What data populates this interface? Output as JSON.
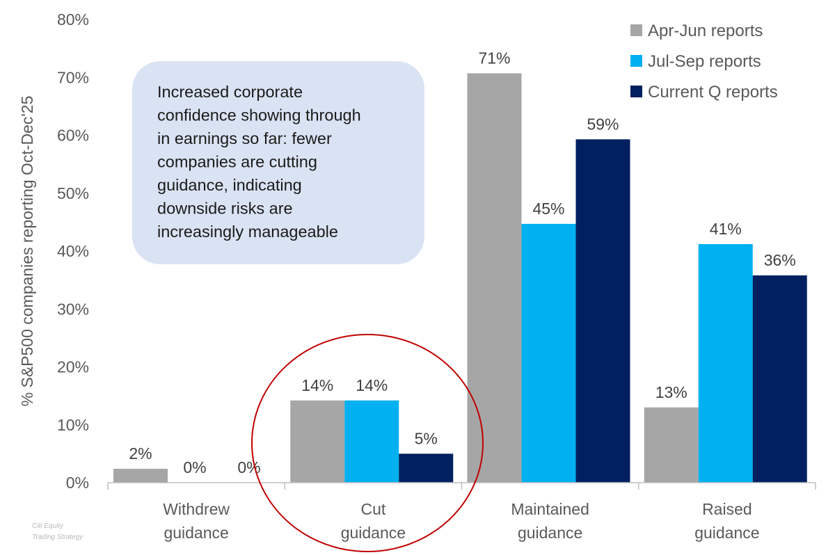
{
  "chart_data": {
    "type": "bar",
    "title": "",
    "xlabel": "",
    "ylabel": "% S&P500 companies reporting Oct-Dec'25",
    "ylim": [
      0,
      80
    ],
    "yticks": [
      0,
      10,
      20,
      30,
      40,
      50,
      60,
      70,
      80
    ],
    "ytick_labels": [
      "0%",
      "10%",
      "20%",
      "30%",
      "40%",
      "50%",
      "60%",
      "70%",
      "80%"
    ],
    "categories": [
      [
        "Withdrew",
        "guidance"
      ],
      [
        "Cut",
        "guidance"
      ],
      [
        "Maintained",
        "guidance"
      ],
      [
        "Raised",
        "guidance"
      ]
    ],
    "series": [
      {
        "name": "Apr-Jun reports",
        "color": "#a6a6a6",
        "values": [
          2.4,
          14.2,
          70.7,
          13.0
        ],
        "labels": [
          "2%",
          "14%",
          "71%",
          "13%"
        ]
      },
      {
        "name": "Jul-Sep reports",
        "color": "#00b0f0",
        "values": [
          0,
          14.2,
          44.7,
          41.2
        ],
        "labels": [
          "0%",
          "14%",
          "45%",
          "41%"
        ]
      },
      {
        "name": "Current Q reports",
        "color": "#002060",
        "values": [
          0,
          5.0,
          59.3,
          35.8
        ],
        "labels": [
          "0%",
          "5%",
          "59%",
          "36%"
        ]
      }
    ],
    "legend": "top-right",
    "grid": false,
    "annotation": {
      "lines": [
        "Increased corporate",
        "confidence showing through",
        "in earnings so far: fewer",
        "companies are cutting",
        "guidance, indicating",
        "downside risks are",
        "increasingly manageable"
      ],
      "fill": "#dae3f3"
    },
    "highlight": {
      "category": "Cut guidance",
      "shape": "circle",
      "color": "#c00000"
    },
    "watermark": [
      "Citi Equity",
      "Trading Strategy"
    ]
  }
}
